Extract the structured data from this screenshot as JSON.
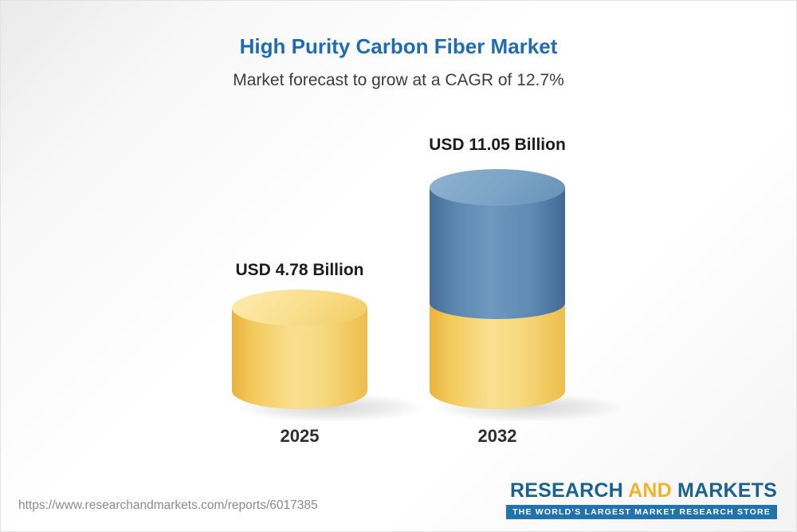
{
  "header": {
    "title": "High Purity Carbon Fiber Market",
    "subtitle": "Market forecast to grow at a CAGR of 12.7%"
  },
  "chart_data": {
    "type": "bar",
    "categories": [
      "2025",
      "2032"
    ],
    "values": [
      4.78,
      11.05
    ],
    "value_labels": [
      "USD 4.78 Billion",
      "USD 11.05 Billion"
    ],
    "unit": "USD Billion",
    "title": "High Purity Carbon Fiber Market",
    "subtitle": "Market forecast to grow at a CAGR of 12.7%",
    "cagr_percent": 12.7,
    "legend": false,
    "grid": false,
    "notes": "Two 3D cylinder bars; 2025 bar solid yellow, 2032 bar blue top segment over yellow base segment"
  },
  "bars": [
    {
      "year": "2025",
      "label": "USD 4.78 Billion",
      "value": 4.78
    },
    {
      "year": "2032",
      "label": "USD 11.05 Billion",
      "value": 11.05
    }
  ],
  "footer": {
    "url": "https://www.researchandmarkets.com/reports/6017385",
    "logo": {
      "research": "RESEARCH",
      "and": "AND",
      "markets": "MARKETS",
      "tagline": "THE WORLD'S LARGEST MARKET RESEARCH STORE"
    }
  },
  "colors": {
    "title_blue": "#1e6db4",
    "bar_yellow": "#f6cf65",
    "bar_blue": "#5f8ab2",
    "logo_blue": "#1a628f",
    "logo_yellow": "#f0b32e",
    "tagline_bg": "#2173ad"
  }
}
